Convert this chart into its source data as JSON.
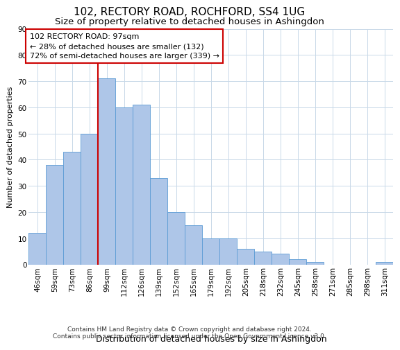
{
  "title": "102, RECTORY ROAD, ROCHFORD, SS4 1UG",
  "subtitle": "Size of property relative to detached houses in Ashingdon",
  "xlabel": "Distribution of detached houses by size in Ashingdon",
  "ylabel": "Number of detached properties",
  "categories": [
    "46sqm",
    "59sqm",
    "73sqm",
    "86sqm",
    "99sqm",
    "112sqm",
    "126sqm",
    "139sqm",
    "152sqm",
    "165sqm",
    "179sqm",
    "192sqm",
    "205sqm",
    "218sqm",
    "232sqm",
    "245sqm",
    "258sqm",
    "271sqm",
    "285sqm",
    "298sqm",
    "311sqm"
  ],
  "values": [
    12,
    38,
    43,
    50,
    71,
    60,
    61,
    33,
    20,
    15,
    10,
    10,
    6,
    5,
    4,
    2,
    1,
    0,
    0,
    0,
    1
  ],
  "bar_color": "#aec6e8",
  "bar_edgecolor": "#5b9bd5",
  "vline_color": "#cc0000",
  "vline_index": 4,
  "annotation_text": "102 RECTORY ROAD: 97sqm\n← 28% of detached houses are smaller (132)\n72% of semi-detached houses are larger (339) →",
  "annotation_box_edgecolor": "#cc0000",
  "ylim": [
    0,
    90
  ],
  "yticks": [
    0,
    10,
    20,
    30,
    40,
    50,
    60,
    70,
    80,
    90
  ],
  "background_color": "#ffffff",
  "grid_color": "#c8d8e8",
  "footer_text": "Contains HM Land Registry data © Crown copyright and database right 2024.\nContains public sector information licensed under the Open Government Licence v3.0.",
  "title_fontsize": 11,
  "subtitle_fontsize": 9.5,
  "xlabel_fontsize": 9,
  "ylabel_fontsize": 8,
  "tick_fontsize": 7.5,
  "annotation_fontsize": 8,
  "footer_fontsize": 6.5
}
